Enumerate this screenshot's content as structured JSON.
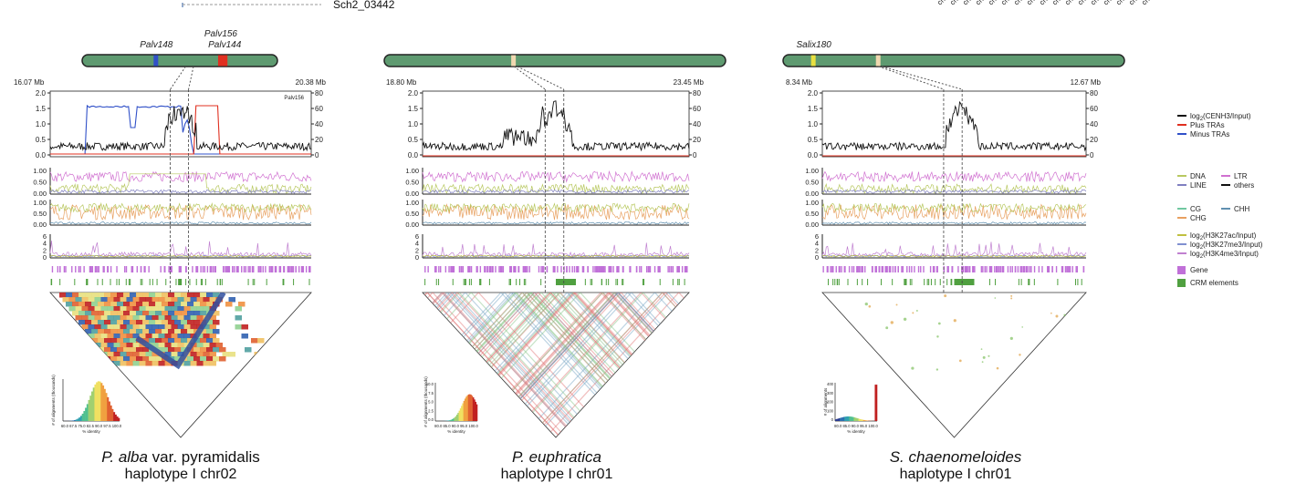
{
  "header": {
    "fragment_label": "Sch2_03442",
    "top_right_label": "chr"
  },
  "panels": [
    {
      "id": "alba",
      "chromosome_marks": [
        {
          "label": "Palv148",
          "color": "#3050c8",
          "pos": 0.38
        },
        {
          "label": "Palv156",
          "color": "#e03020",
          "pos": 0.71
        },
        {
          "label": "Palv144",
          "color": "#e03020",
          "pos": 0.73
        }
      ],
      "coord_left": "16.07 Mb",
      "coord_right": "20.38 Mb",
      "repeat_tag": "Palv156",
      "caption_species": "P. alba",
      "caption_species_rest": " var. pyramidalis",
      "caption_line2": "haplotype I chr02"
    },
    {
      "id": "euphratica",
      "chromosome_marks": [
        {
          "label": "",
          "color": "#f0d8b0",
          "pos": 0.38
        }
      ],
      "coord_left": "18.80 Mb",
      "coord_right": "23.45 Mb",
      "repeat_tag": "",
      "caption_species": "P. euphratica",
      "caption_species_rest": "",
      "caption_line2": "haplotype I chr01"
    },
    {
      "id": "chaenomeloides",
      "chromosome_marks": [
        {
          "label": "Salix180",
          "color": "#e8e040",
          "pos": 0.09
        },
        {
          "label": "",
          "color": "#f0d8b0",
          "pos": 0.28
        }
      ],
      "coord_left": "8.34 Mb",
      "coord_right": "12.67 Mb",
      "repeat_tag": "",
      "caption_species": "S. chaenomeloides",
      "caption_species_rest": "",
      "caption_line2": "haplotype I chr01"
    }
  ],
  "axes": {
    "top_left_ticks": [
      "2.0",
      "1.5",
      "1.0",
      "0.5",
      "0.0"
    ],
    "top_right_ticks": [
      "80",
      "60",
      "40",
      "20",
      "0"
    ],
    "te_ticks": [
      "1.00",
      "0.50",
      "0.00"
    ],
    "meth_ticks": [
      "1.00",
      "0.50",
      "0.00"
    ],
    "hist_ticks": [
      "6",
      "4",
      "2",
      "0"
    ]
  },
  "inset": {
    "xlabel": "% identity",
    "ylabel_alba": "# of alignments (thousands)",
    "ylabel_euph": "# of alignments (thousands)",
    "ylabel_chaen": "# of alignments",
    "x_ticks_alba": "60.0 67.5 75.0 82.5 90.0 97.5 100.0",
    "x_ticks_euph": "80.0 85.0 90.0 95.0 100.0",
    "x_ticks_chaen": "80.0 85.0 90.0 95.0 100.0",
    "y_ticks_euph": [
      "10.0",
      "7.5",
      "5.0",
      "2.5",
      "0.0"
    ],
    "y_ticks_chaen": [
      "400",
      "300",
      "200",
      "100",
      "0"
    ]
  },
  "legend": {
    "groups": [
      {
        "items": [
          {
            "label": "log2(CENH3/Input)",
            "color": "#111111"
          },
          {
            "label": "Plus TRAs",
            "color": "#e03020"
          },
          {
            "label": "Minus TRAs",
            "color": "#3050c8"
          }
        ]
      },
      {
        "items": [
          {
            "label": "DNA",
            "color": "#b8c860"
          },
          {
            "label": "LTR",
            "color": "#d070d0"
          },
          {
            "label": "LINE",
            "color": "#8080c0"
          },
          {
            "label": "others",
            "color": "#111111"
          }
        ]
      },
      {
        "items": [
          {
            "label": "CG",
            "color": "#70c8a0"
          },
          {
            "label": "CHH",
            "color": "#6090b0"
          },
          {
            "label": "CHG",
            "color": "#e8a060"
          }
        ]
      },
      {
        "items": [
          {
            "label": "log2(H3K27ac/Input)",
            "color": "#c0c040"
          },
          {
            "label": "log2(H3K27me3/Input)",
            "color": "#8090d0"
          },
          {
            "label": "log2(H3K4me3/Input)",
            "color": "#c080d0"
          }
        ]
      },
      {
        "items": [
          {
            "label": "Gene",
            "color": "#c070d8",
            "box": true
          },
          {
            "label": "CRM elements",
            "color": "#50a040",
            "box": true
          }
        ]
      }
    ]
  },
  "colors": {
    "chromosome_fill": "#5e9a70",
    "line_black": "#111111",
    "plus": "#e03020",
    "minus": "#3050c8",
    "gene": "#c070d8",
    "crm": "#50a040"
  }
}
